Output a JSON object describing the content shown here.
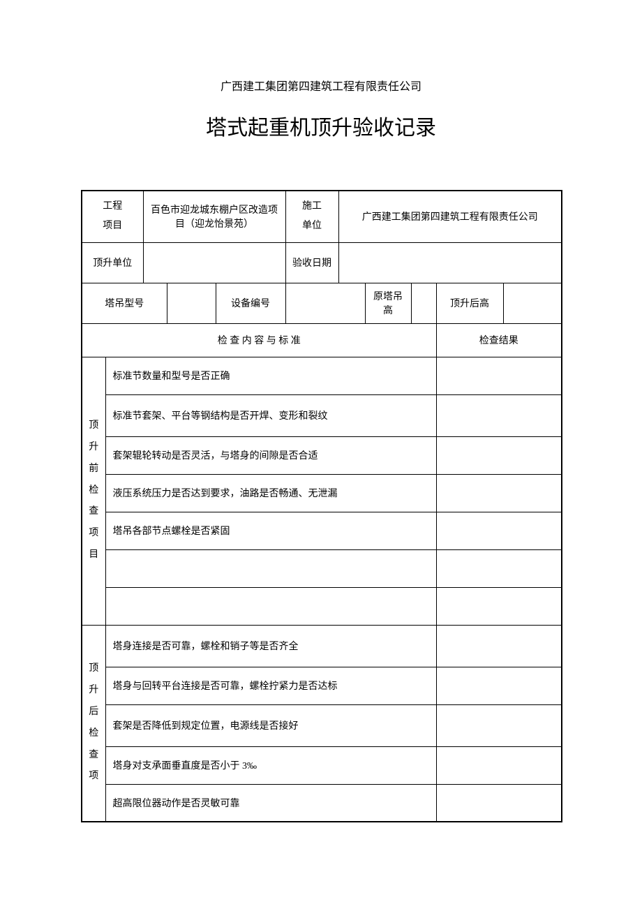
{
  "companyHeader": "广西建工集团第四建筑工程有限责任公司",
  "title": "塔式起重机顶升验收记录",
  "row1": {
    "projectLabel": "工程\n项目",
    "projectValue": "百色市迎龙城东棚户区改造项目（迎龙怡景苑）",
    "builderLabel": "施工\n单位",
    "builderValue": "广西建工集团第四建筑工程有限责任公司"
  },
  "row2": {
    "liftUnitLabel": "顶升单位",
    "liftUnitValue": "",
    "acceptDateLabel": "验收日期",
    "acceptDateValue": ""
  },
  "row3": {
    "craneModelLabel": "塔吊型号",
    "craneModelValue": "",
    "equipNoLabel": "设备编号",
    "equipNoValue": "",
    "origHeightLabel": "原塔吊高",
    "origHeightValue": "",
    "afterHeightLabel": "顶升后高",
    "afterHeightValue": ""
  },
  "sectionHeader": {
    "content": "检 查 内 容 与 标 准",
    "result": "检查结果"
  },
  "preCheck": {
    "label": "顶升前检查项目",
    "items": [
      "标准节数量和型号是否正确",
      "标准节套架、平台等钢结构是否开焊、变形和裂纹",
      "套架辊轮转动是否灵活，与塔身的间隙是否合适",
      "液压系统压力是否达到要求，油路是否畅通、无泄漏",
      "塔吊各部节点螺栓是否紧固",
      "",
      ""
    ]
  },
  "postCheck": {
    "label": "顶升后检查项",
    "items": [
      "塔身连接是否可靠，螺栓和销子等是否齐全",
      "塔身与回转平台连接是否可靠，螺栓拧紧力是否达标",
      "套架是否降低到规定位置，电源线是否接好",
      "塔身对支承面垂直度是否小于 3‰",
      "超高限位器动作是否灵敏可靠"
    ]
  },
  "style": {
    "pageBg": "#ffffff",
    "textColor": "#000000",
    "borderColor": "#000000",
    "titleFontSize": 30,
    "bodyFontSize": 14,
    "headerFontSize": 16
  }
}
